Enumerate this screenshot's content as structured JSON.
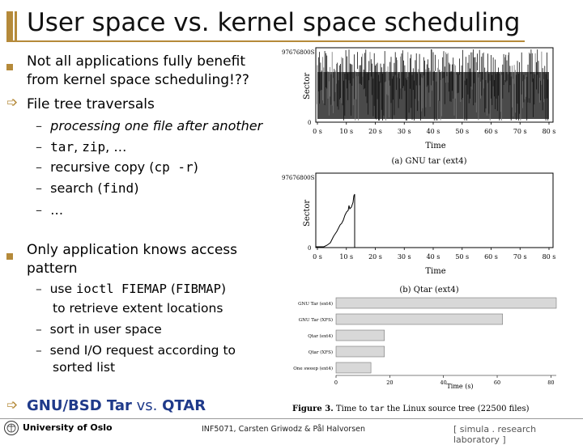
{
  "title": "User space vs. kernel space scheduling",
  "bullets": {
    "b1": "Not all applications fully benefit from kernel space scheduling!??",
    "b2": "File tree traversals",
    "b2_subs": {
      "s1": "processing one file after another",
      "s2_code1": "tar",
      "s2_sep": ", ",
      "s2_code2": "zip",
      "s2_rest": ", …",
      "s3_pre": "recursive copy (",
      "s3_code": "cp -r",
      "s3_post": ")",
      "s4_pre": "search (",
      "s4_code": "find",
      "s4_post": ")",
      "s5": "…"
    },
    "b3": "Only application knows access pattern",
    "b3_subs": {
      "s1_pre": "use ",
      "s1_code1": "ioctl FIEMAP",
      "s1_mid": " (",
      "s1_code2": "FIBMAP",
      "s1_post": ")",
      "s1_line2": "to retrieve extent locations",
      "s2": "sort in user space",
      "s3_line1": "send I/O request according to",
      "s3_line2": "sorted list"
    },
    "b4_a": "GNU/BSD Tar",
    "b4_b": " vs. ",
    "b4_c": "QTAR"
  },
  "plot_a": {
    "ymax_label": "97676800S",
    "y0_label": "0",
    "ylabel": "Sector",
    "xlabel": "Time",
    "ticks": [
      "0 s",
      "10 s",
      "20 s",
      "30 s",
      "40 s",
      "50 s",
      "60 s",
      "70 s",
      "80 s"
    ],
    "caption": "(a) GNU tar (ext4)"
  },
  "plot_b": {
    "ymax_label": "97676800S",
    "y0_label": "0",
    "ylabel": "Sector",
    "xlabel": "Time",
    "ticks": [
      "0 s",
      "10 s",
      "20 s",
      "30 s",
      "40 s",
      "50 s",
      "60 s",
      "70 s",
      "80 s"
    ],
    "caption": "(b) Qtar (ext4)"
  },
  "chart_data": {
    "type": "bar",
    "orientation": "horizontal",
    "categories": [
      "GNU Tar (ext4)",
      "GNU Tar (XFS)",
      "Qtar (ext4)",
      "Qtar (XFS)",
      "One sweep (ext4)"
    ],
    "values": [
      82,
      62,
      18,
      18,
      13
    ],
    "xlabel": "Time (s)",
    "xlim": [
      0,
      82
    ],
    "xticks": [
      "0",
      "20",
      "40",
      "60",
      "80"
    ],
    "bar_color": "#d8d8d8"
  },
  "figure_caption": {
    "lead": "Figure 3.",
    "text_a": " Time to ",
    "code": "tar",
    "text_b": " the Linux source tree (22500 files)"
  },
  "footer": {
    "university": "University of Oslo",
    "course": "INF5071, Carsten Griwodz & Pål Halvorsen",
    "lab": "[ simula . research laboratory ]"
  }
}
